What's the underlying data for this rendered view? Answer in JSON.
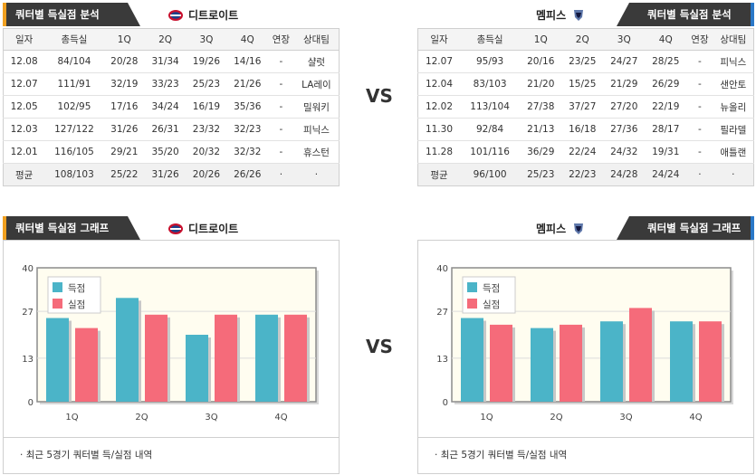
{
  "top_left": {
    "tab_label": "쿼터별 득실점 분석",
    "team": "디트로이트",
    "headers": [
      "일자",
      "총득실",
      "1Q",
      "2Q",
      "3Q",
      "4Q",
      "연장",
      "상대팀"
    ],
    "rows": [
      [
        "12.08",
        "84/104",
        "20/28",
        "31/34",
        "19/26",
        "14/16",
        "-",
        "샬럿"
      ],
      [
        "12.07",
        "111/91",
        "32/19",
        "33/23",
        "25/23",
        "21/26",
        "-",
        "LA레이"
      ],
      [
        "12.05",
        "102/95",
        "17/16",
        "34/24",
        "16/19",
        "35/36",
        "-",
        "밀워키"
      ],
      [
        "12.03",
        "127/122",
        "31/26",
        "26/31",
        "23/32",
        "32/23",
        "-",
        "피닉스"
      ],
      [
        "12.01",
        "116/105",
        "29/21",
        "35/20",
        "20/32",
        "32/32",
        "-",
        "휴스턴"
      ]
    ],
    "avg": [
      "평균",
      "108/103",
      "25/22",
      "31/26",
      "20/26",
      "26/26",
      "·",
      "·"
    ]
  },
  "top_right": {
    "tab_label": "쿼터별 득실점 분석",
    "team": "멤피스",
    "headers": [
      "일자",
      "총득실",
      "1Q",
      "2Q",
      "3Q",
      "4Q",
      "연장",
      "상대팀"
    ],
    "rows": [
      [
        "12.07",
        "95/93",
        "20/16",
        "23/25",
        "24/27",
        "28/25",
        "-",
        "피닉스"
      ],
      [
        "12.04",
        "83/103",
        "21/20",
        "15/25",
        "21/29",
        "26/29",
        "-",
        "샌안토"
      ],
      [
        "12.02",
        "113/104",
        "27/38",
        "37/27",
        "27/20",
        "22/19",
        "-",
        "뉴올리"
      ],
      [
        "11.30",
        "92/84",
        "21/13",
        "16/18",
        "27/36",
        "28/17",
        "-",
        "필라델"
      ],
      [
        "11.28",
        "101/116",
        "36/29",
        "22/24",
        "24/32",
        "19/31",
        "-",
        "애틀랜"
      ]
    ],
    "avg": [
      "평균",
      "96/100",
      "25/23",
      "22/23",
      "24/28",
      "24/24",
      "·",
      "·"
    ]
  },
  "vs_label": "VS",
  "colors": {
    "scored": "#4bb4c8",
    "allowed": "#f56b7a",
    "accent_left": "#f0a020",
    "accent_right": "#2a78c8"
  },
  "chart_data": [
    {
      "type": "bar",
      "tab_label": "쿼터별 득실점 그래프",
      "team": "디트로이트",
      "categories": [
        "1Q",
        "2Q",
        "3Q",
        "4Q"
      ],
      "series": [
        {
          "name": "득점",
          "values": [
            25,
            31,
            20,
            26
          ]
        },
        {
          "name": "실점",
          "values": [
            22,
            26,
            26,
            26
          ]
        }
      ],
      "yticks": [
        "40",
        "27",
        "13",
        "0"
      ],
      "ylim": [
        0,
        40
      ],
      "legend": "top-left",
      "note": "최근 5경기 쿼터별 득/실점 내역"
    },
    {
      "type": "bar",
      "tab_label": "쿼터별 득실점 그래프",
      "team": "멤피스",
      "categories": [
        "1Q",
        "2Q",
        "3Q",
        "4Q"
      ],
      "series": [
        {
          "name": "득점",
          "values": [
            25,
            22,
            24,
            24
          ]
        },
        {
          "name": "실점",
          "values": [
            23,
            23,
            28,
            24
          ]
        }
      ],
      "yticks": [
        "40",
        "27",
        "13",
        "0"
      ],
      "ylim": [
        0,
        40
      ],
      "legend": "top-left",
      "note": "최근 5경기 쿼터별 득/실점 내역"
    }
  ]
}
